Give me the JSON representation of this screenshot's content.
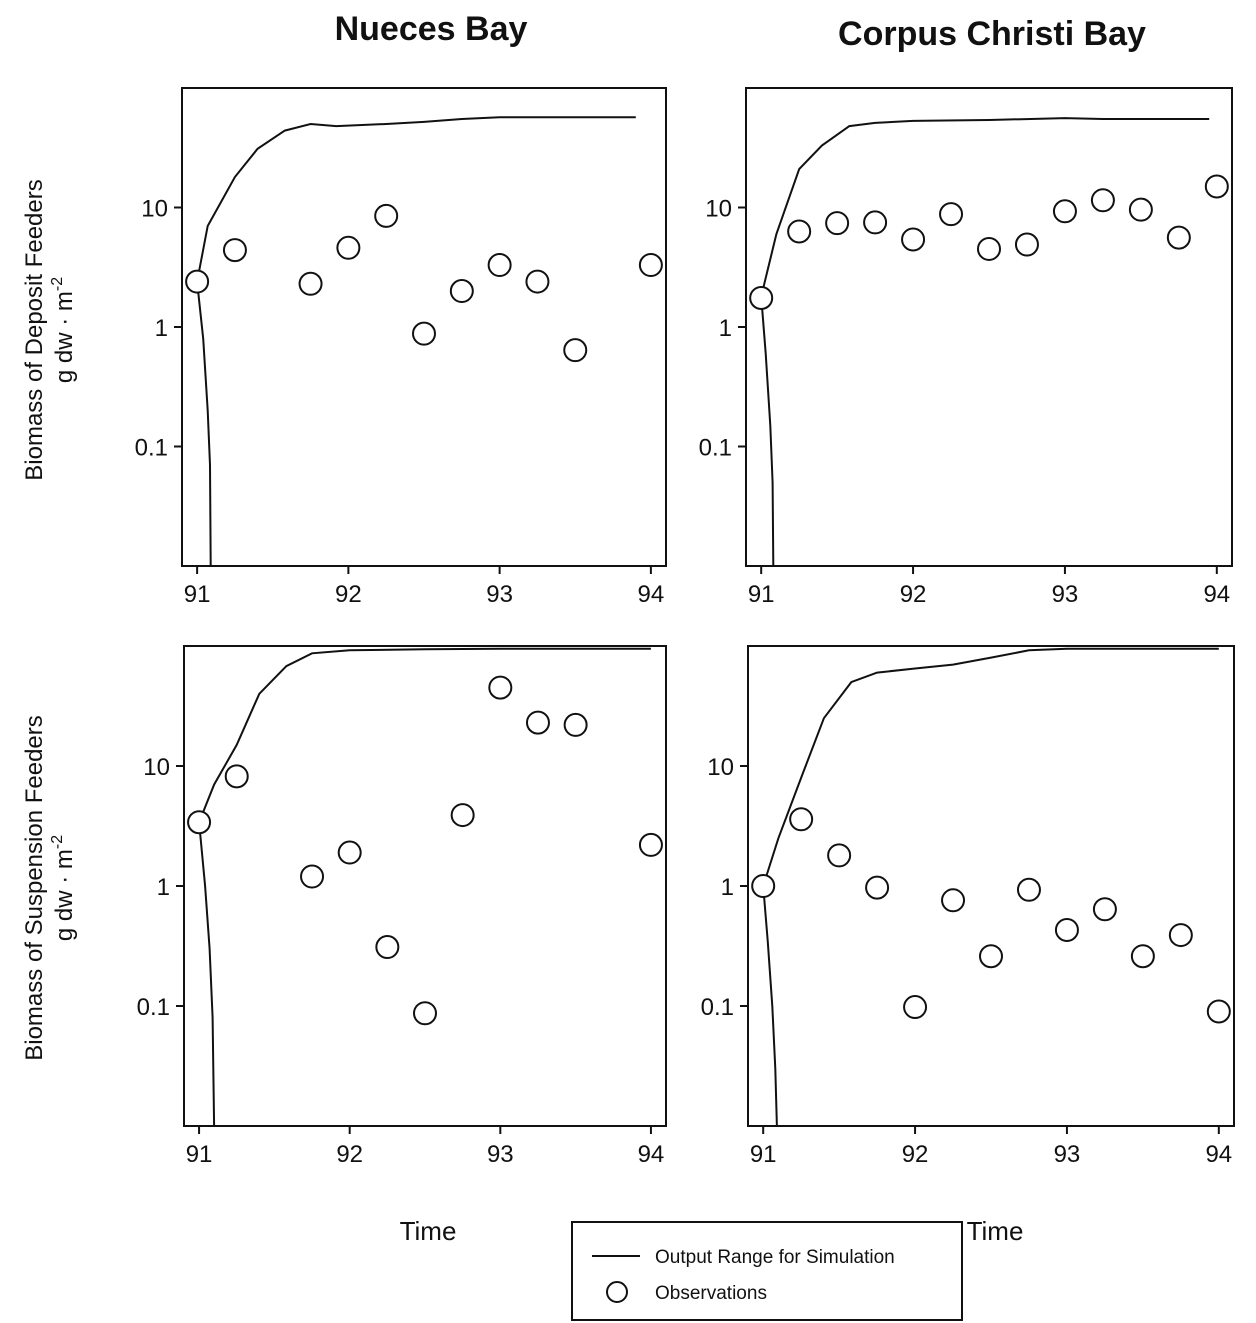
{
  "figure": {
    "col_titles": [
      "Nueces Bay",
      "Corpus Christi Bay"
    ],
    "ylabels": [
      [
        "Biomass of Deposit Feeders",
        "g dw · m",
        "-2"
      ],
      [
        "Biomass of Suspension Feeders",
        "g dw · m",
        "-2"
      ]
    ],
    "xlabel": "Time"
  },
  "legend": {
    "line_label": "Output Range for Simulation",
    "marker_label": "Observations"
  },
  "chart_data": [
    {
      "type": "line",
      "panel": "Nueces Bay - Deposit Feeders",
      "title": "Nueces Bay",
      "xlabel": "",
      "ylabel": "Biomass of Deposit Feeders g dw · m-2",
      "xlim": [
        90.9,
        94.1
      ],
      "ylim": [
        0.01,
        100
      ],
      "yscale": "log",
      "xticks": [
        "91",
        "92",
        "93",
        "94"
      ],
      "yticks": [
        "10",
        "1",
        "0.1"
      ],
      "series": [
        {
          "name": "Output Range for Simulation",
          "kind": "upper",
          "x": [
            91.0,
            91.07,
            91.25,
            91.4,
            91.58,
            91.75,
            91.92,
            92.25,
            92.5,
            92.75,
            93.0,
            93.25,
            93.5,
            93.75,
            93.9
          ],
          "y": [
            2.4,
            7.0,
            18,
            31,
            44,
            50,
            48,
            50,
            52,
            55,
            57,
            57,
            57,
            57,
            57
          ]
        },
        {
          "name": "Output Range for Simulation",
          "kind": "lower",
          "x": [
            91.0,
            91.04,
            91.07,
            91.085,
            91.09
          ],
          "y": [
            2.4,
            0.8,
            0.2,
            0.07,
            0.01
          ]
        },
        {
          "name": "Output Range for Simulation",
          "kind": "upper-bound",
          "x": [
            91.15,
            94.0
          ],
          "y": [
            100,
            100
          ]
        },
        {
          "name": "Observations",
          "kind": "points",
          "x": [
            91.0,
            91.25,
            91.75,
            92.0,
            92.25,
            92.5,
            92.75,
            93.0,
            93.25,
            93.5,
            94.0
          ],
          "y": [
            2.4,
            4.4,
            2.3,
            4.6,
            8.5,
            0.88,
            2.0,
            3.3,
            2.4,
            0.64,
            3.3
          ]
        }
      ]
    },
    {
      "type": "line",
      "panel": "Corpus Christi Bay - Deposit Feeders",
      "title": "Corpus Christi Bay",
      "xlabel": "",
      "ylabel": "",
      "xlim": [
        90.9,
        94.1
      ],
      "ylim": [
        0.01,
        100
      ],
      "yscale": "log",
      "xticks": [
        "91",
        "92",
        "93",
        "94"
      ],
      "yticks": [
        "10",
        "1",
        "0.1"
      ],
      "series": [
        {
          "name": "Output Range for Simulation",
          "kind": "upper",
          "x": [
            91.0,
            91.1,
            91.25,
            91.4,
            91.58,
            91.75,
            92.0,
            92.5,
            93.0,
            93.25,
            93.5,
            93.75,
            93.95
          ],
          "y": [
            1.8,
            6.0,
            21,
            33,
            48,
            51,
            53,
            54,
            56,
            55,
            55,
            55,
            55
          ]
        },
        {
          "name": "Output Range for Simulation",
          "kind": "lower",
          "x": [
            91.0,
            91.03,
            91.06,
            91.075,
            91.08
          ],
          "y": [
            1.8,
            0.6,
            0.15,
            0.05,
            0.01
          ]
        },
        {
          "name": "Output Range for Simulation",
          "kind": "upper-bound",
          "x": [
            91.2,
            94.0
          ],
          "y": [
            100,
            100
          ]
        },
        {
          "name": "Observations",
          "kind": "points",
          "x": [
            91.0,
            91.25,
            91.5,
            91.75,
            92.0,
            92.25,
            92.5,
            92.75,
            93.0,
            93.25,
            93.5,
            93.75,
            94.0
          ],
          "y": [
            1.75,
            6.3,
            7.4,
            7.5,
            5.4,
            8.8,
            4.5,
            4.9,
            9.3,
            11.5,
            9.6,
            5.6,
            15
          ]
        }
      ]
    },
    {
      "type": "line",
      "panel": "Nueces Bay - Suspension Feeders",
      "title": "",
      "xlabel": "Time",
      "ylabel": "Biomass of Suspension Feeders g dw · m-2",
      "xlim": [
        90.9,
        94.1
      ],
      "ylim": [
        0.01,
        100
      ],
      "yscale": "log",
      "xticks": [
        "91",
        "92",
        "93",
        "94"
      ],
      "yticks": [
        "10",
        "1",
        "0.1"
      ],
      "series": [
        {
          "name": "Output Range for Simulation",
          "kind": "upper",
          "x": [
            91.0,
            91.1,
            91.25,
            91.4,
            91.58,
            91.75,
            92.0,
            92.5,
            93.0,
            93.5,
            94.0
          ],
          "y": [
            3.4,
            7,
            15,
            40,
            68,
            87,
            92,
            94,
            95,
            95,
            95
          ]
        },
        {
          "name": "Output Range for Simulation",
          "kind": "lower",
          "x": [
            91.0,
            91.04,
            91.07,
            91.09,
            91.1
          ],
          "y": [
            3.4,
            1.0,
            0.3,
            0.08,
            0.01
          ]
        },
        {
          "name": "Observations",
          "kind": "points",
          "x": [
            91.0,
            91.25,
            91.75,
            92.0,
            92.25,
            92.5,
            92.75,
            93.0,
            93.25,
            93.5,
            94.0
          ],
          "y": [
            3.4,
            8.2,
            1.2,
            1.9,
            0.31,
            0.087,
            3.9,
            45,
            23,
            22,
            2.2
          ]
        }
      ]
    },
    {
      "type": "line",
      "panel": "Corpus Christi Bay - Suspension Feeders",
      "title": "",
      "xlabel": "Time",
      "ylabel": "",
      "xlim": [
        90.9,
        94.1
      ],
      "ylim": [
        0.01,
        100
      ],
      "yscale": "log",
      "xticks": [
        "91",
        "92",
        "93",
        "94"
      ],
      "yticks": [
        "10",
        "1",
        "0.1"
      ],
      "series": [
        {
          "name": "Output Range for Simulation",
          "kind": "upper",
          "x": [
            91.0,
            91.1,
            91.25,
            91.4,
            91.58,
            91.75,
            92.0,
            92.25,
            92.5,
            92.75,
            93.0,
            93.5,
            94.0
          ],
          "y": [
            1.0,
            2.5,
            8,
            25,
            50,
            60,
            65,
            70,
            80,
            92,
            95,
            95,
            95
          ]
        },
        {
          "name": "Output Range for Simulation",
          "kind": "lower",
          "x": [
            91.0,
            91.03,
            91.06,
            91.08,
            91.09
          ],
          "y": [
            1.0,
            0.35,
            0.1,
            0.03,
            0.01
          ]
        },
        {
          "name": "Observations",
          "kind": "points",
          "x": [
            91.0,
            91.25,
            91.5,
            91.75,
            92.0,
            92.25,
            92.5,
            92.75,
            93.0,
            93.25,
            93.5,
            93.75,
            94.0
          ],
          "y": [
            1.0,
            3.6,
            1.8,
            0.97,
            0.098,
            0.76,
            0.26,
            0.93,
            0.43,
            0.64,
            0.26,
            0.39,
            0.09
          ]
        }
      ]
    }
  ]
}
